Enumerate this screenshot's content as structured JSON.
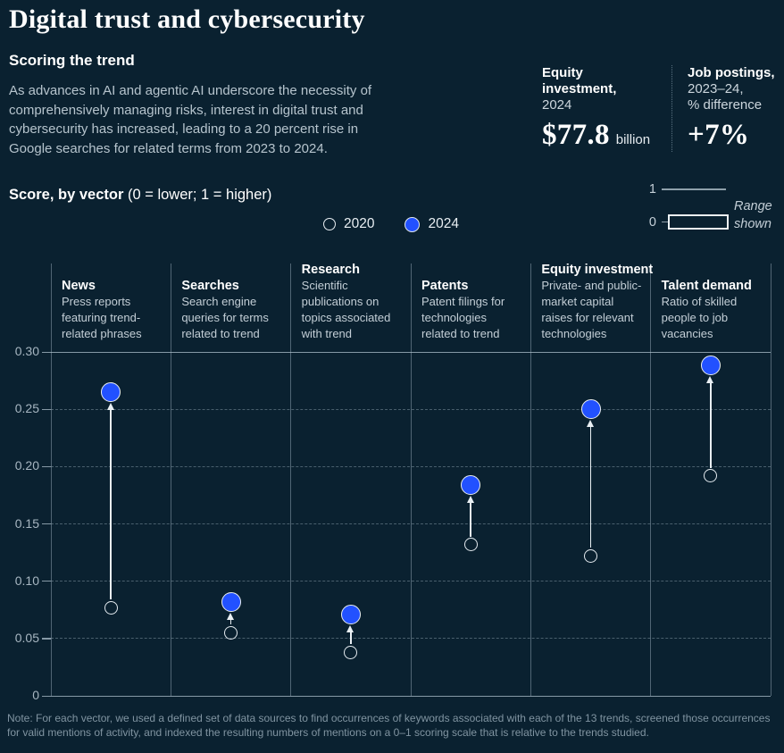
{
  "page_title": "Digital trust and cybersecurity",
  "intro": {
    "heading": "Scoring the trend",
    "body": "As advances in AI and agentic AI underscore the necessity of\ncomprehensively managing risks, interest in digital trust and\ncybersecurity has increased, leading to a 20 percent rise in\nGoogle searches for related terms from 2023 to 2024."
  },
  "header_stats": [
    {
      "label_bold": "Equity investment,",
      "label_rest": "2024",
      "value": "$77.8",
      "value_suffix": "billion"
    },
    {
      "label_bold": "Job postings,",
      "label_rest": "2023–24,\n% difference",
      "value": "+7%",
      "value_suffix": ""
    }
  ],
  "score_header": {
    "label_bold": "Score, by vector",
    "label_rest": " (0 = lower; 1 = higher)"
  },
  "legend": {
    "items": [
      {
        "label": "2020",
        "style": "open"
      },
      {
        "label": "2024",
        "style": "filled"
      }
    ]
  },
  "range_indicator": {
    "top_label": "1",
    "bottom_label": "0",
    "caption": "Range\nshown"
  },
  "chart_data": {
    "type": "scatter",
    "title": "Score, by vector (0 = lower; 1 = higher)",
    "ylabel": "Score",
    "ylim": [
      0,
      0.3
    ],
    "yticks": [
      0,
      0.05,
      0.1,
      0.15,
      0.2,
      0.25,
      0.3
    ],
    "ytick_labels": [
      "0",
      "0.05",
      "0.10",
      "0.15",
      "0.20",
      "0.25",
      "0.30"
    ],
    "grid": "horizontal dashed; top and baseline solid; vertical column dividers",
    "legend_position": "top center",
    "series_years": [
      "2020",
      "2024"
    ],
    "columns": [
      {
        "title": "News",
        "description": "Press reports\nfeaturing trend-\nrelated phrases",
        "values": {
          "2020": 0.077,
          "2024": 0.265
        }
      },
      {
        "title": "Searches",
        "description": "Search engine\nqueries for terms\nrelated to trend",
        "values": {
          "2020": 0.055,
          "2024": 0.082
        }
      },
      {
        "title": "Research",
        "description": "Scientific\npublications on\ntopics associated\nwith trend",
        "values": {
          "2020": 0.038,
          "2024": 0.071
        }
      },
      {
        "title": "Patents",
        "description": "Patent filings for\ntechnologies\nrelated to trend",
        "values": {
          "2020": 0.132,
          "2024": 0.184
        }
      },
      {
        "title": "Equity investment",
        "description": "Private- and public-\nmarket capital\nraises for relevant\ntechnologies",
        "values": {
          "2020": 0.122,
          "2024": 0.25
        }
      },
      {
        "title": "Talent demand",
        "description": "Ratio of skilled\npeople to job\nvacancies",
        "values": {
          "2020": 0.192,
          "2024": 0.288
        }
      }
    ]
  },
  "note": "Note: For each vector, we used a defined set of data sources to find occurrences of keywords associated with each of the 13 trends, screened those occurrences\nfor valid mentions of activity, and indexed the resulting numbers of mentions on a 0–1 scoring scale that is relative to the trends studied.",
  "colors": {
    "background": "#0a2130",
    "accent_blue": "#2251ff",
    "text_primary": "#ffffff",
    "text_secondary": "#b6c4cd",
    "text_muted": "#8094a1"
  }
}
